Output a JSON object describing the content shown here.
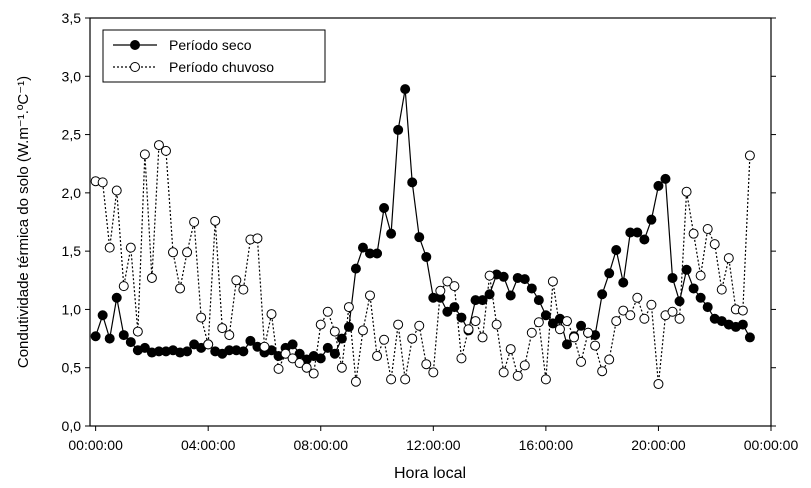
{
  "chart_data": {
    "type": "line",
    "x_label": "Hora local",
    "y_label": "Condutividade térmica do solo (W.m⁻¹.ºC⁻¹)",
    "x": [
      0,
      0.25,
      0.5,
      0.75,
      1,
      1.25,
      1.5,
      1.75,
      2,
      2.25,
      2.5,
      2.75,
      3,
      3.25,
      3.5,
      3.75,
      4,
      4.25,
      4.5,
      4.75,
      5,
      5.25,
      5.5,
      5.75,
      6,
      6.25,
      6.5,
      6.75,
      7,
      7.25,
      7.5,
      7.75,
      8,
      8.25,
      8.5,
      8.75,
      9,
      9.25,
      9.5,
      9.75,
      10,
      10.25,
      10.5,
      10.75,
      11,
      11.25,
      11.5,
      11.75,
      12,
      12.25,
      12.5,
      12.75,
      13,
      13.25,
      13.5,
      13.75,
      14,
      14.25,
      14.5,
      14.75,
      15,
      15.25,
      15.5,
      15.75,
      16,
      16.25,
      16.5,
      16.75,
      17,
      17.25,
      17.5,
      17.75,
      18,
      18.25,
      18.5,
      18.75,
      19,
      19.25,
      19.5,
      19.75,
      20,
      20.25,
      20.5,
      20.75,
      21,
      21.25,
      21.5,
      21.75,
      22,
      22.25,
      22.5,
      22.75,
      23,
      23.25
    ],
    "series": [
      {
        "name": "Período seco",
        "color": "#000000",
        "line_style": "solid",
        "marker_fill": "filled",
        "values": [
          0.77,
          0.95,
          0.75,
          1.1,
          0.78,
          0.72,
          0.65,
          0.67,
          0.63,
          0.64,
          0.64,
          0.65,
          0.63,
          0.64,
          0.7,
          0.67,
          0.7,
          0.64,
          0.62,
          0.65,
          0.65,
          0.64,
          0.73,
          0.68,
          0.63,
          0.65,
          0.6,
          0.67,
          0.7,
          0.62,
          0.57,
          0.6,
          0.58,
          0.67,
          0.62,
          0.75,
          0.85,
          1.35,
          1.53,
          1.48,
          1.48,
          1.87,
          1.65,
          2.54,
          2.89,
          2.09,
          1.62,
          1.45,
          1.1,
          1.1,
          0.98,
          1.02,
          0.93,
          0.82,
          1.08,
          1.08,
          1.13,
          1.3,
          1.28,
          1.12,
          1.27,
          1.26,
          1.18,
          1.08,
          0.95,
          0.88,
          0.92,
          0.7,
          0.77,
          0.86,
          0.8,
          0.78,
          1.13,
          1.31,
          1.51,
          1.23,
          1.66,
          1.66,
          1.6,
          1.77,
          2.06,
          2.12,
          1.27,
          1.07,
          1.34,
          1.18,
          1.1,
          1.02,
          0.92,
          0.9,
          0.87,
          0.85,
          0.87,
          0.76
        ]
      },
      {
        "name": "Período chuvoso",
        "color": "#000000",
        "line_style": "dotted",
        "marker_fill": "open",
        "values": [
          2.1,
          2.09,
          1.53,
          2.02,
          1.2,
          1.53,
          0.81,
          2.33,
          1.27,
          2.41,
          2.36,
          1.49,
          1.18,
          1.49,
          1.75,
          0.93,
          0.7,
          1.76,
          0.84,
          0.78,
          1.25,
          1.17,
          1.6,
          1.61,
          0.68,
          0.96,
          0.49,
          0.62,
          0.58,
          0.54,
          0.5,
          0.45,
          0.87,
          0.98,
          0.81,
          0.5,
          1.02,
          0.38,
          0.82,
          1.12,
          0.6,
          0.74,
          0.4,
          0.87,
          0.4,
          0.75,
          0.86,
          0.53,
          0.46,
          1.16,
          1.24,
          1.2,
          0.58,
          0.83,
          0.9,
          0.76,
          1.29,
          0.87,
          0.46,
          0.66,
          0.43,
          0.52,
          0.8,
          0.89,
          0.4,
          1.24,
          0.83,
          0.9,
          0.76,
          0.55,
          0.8,
          0.69,
          0.47,
          0.57,
          0.9,
          0.99,
          0.95,
          1.1,
          0.92,
          1.04,
          0.36,
          0.95,
          0.98,
          0.92,
          2.01,
          1.65,
          1.29,
          1.69,
          1.56,
          1.17,
          1.44,
          1.0,
          0.99,
          2.32
        ]
      }
    ],
    "xlim": [
      -0.2,
      24
    ],
    "xticks": [
      {
        "value": 0,
        "label": "00:00:00"
      },
      {
        "value": 4,
        "label": "04:00:00"
      },
      {
        "value": 8,
        "label": "08:00:00"
      },
      {
        "value": 12,
        "label": "12:00:00"
      },
      {
        "value": 16,
        "label": "16:00:00"
      },
      {
        "value": 20,
        "label": "20:00:00"
      },
      {
        "value": 24,
        "label": "00:00:00"
      }
    ],
    "ylim": [
      0,
      3.5
    ],
    "yticks": [
      {
        "value": 0,
        "label": "0,0"
      },
      {
        "value": 0.5,
        "label": "0,5"
      },
      {
        "value": 1,
        "label": "1,0"
      },
      {
        "value": 1.5,
        "label": "1,5"
      },
      {
        "value": 2,
        "label": "2,0"
      },
      {
        "value": 2.5,
        "label": "2,5"
      },
      {
        "value": 3,
        "label": "3,0"
      },
      {
        "value": 3.5,
        "label": "3,5"
      }
    ],
    "grid": false,
    "legend": "upper left"
  }
}
